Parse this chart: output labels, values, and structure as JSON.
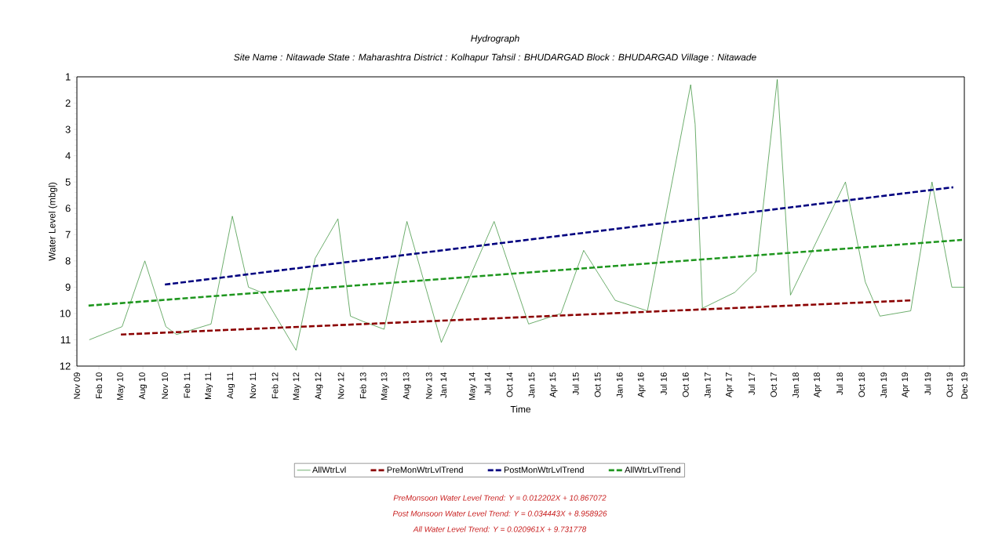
{
  "chart_data": {
    "type": "line",
    "title": "Hydrograph",
    "subtitle": "Site Name : Nitawade  State : Maharashtra District : Kolhapur  Tahsil : BHUDARGAD  Block : BHUDARGAD Village : Nitawade",
    "xlabel": "Time",
    "ylabel": "Water Level (mbgl)",
    "xlim": [
      "2009-11",
      "2019-12"
    ],
    "ylim": [
      12,
      1
    ],
    "yticks": [
      1,
      2,
      3,
      4,
      5,
      6,
      7,
      8,
      9,
      10,
      11,
      12
    ],
    "xticks": [
      {
        "value": "2009-11",
        "label": "Nov 09"
      },
      {
        "value": "2010-02",
        "label": "Feb 10"
      },
      {
        "value": "2010-05",
        "label": "May 10"
      },
      {
        "value": "2010-08",
        "label": "Aug 10"
      },
      {
        "value": "2010-11",
        "label": "Nov 10"
      },
      {
        "value": "2011-02",
        "label": "Feb 11"
      },
      {
        "value": "2011-05",
        "label": "May 11"
      },
      {
        "value": "2011-08",
        "label": "Aug 11"
      },
      {
        "value": "2011-11",
        "label": "Nov 11"
      },
      {
        "value": "2012-02",
        "label": "Feb 12"
      },
      {
        "value": "2012-05",
        "label": "May 12"
      },
      {
        "value": "2012-08",
        "label": "Aug 12"
      },
      {
        "value": "2012-11",
        "label": "Nov 12"
      },
      {
        "value": "2013-02",
        "label": "Feb 13"
      },
      {
        "value": "2013-05",
        "label": "May 13"
      },
      {
        "value": "2013-08",
        "label": "Aug 13"
      },
      {
        "value": "2013-11",
        "label": "Nov 13"
      },
      {
        "value": "2014-01",
        "label": "Jan 14"
      },
      {
        "value": "2014-05",
        "label": "May 14"
      },
      {
        "value": "2014-07",
        "label": "Jul 14"
      },
      {
        "value": "2014-10",
        "label": "Oct 14"
      },
      {
        "value": "2015-01",
        "label": "Jan 15"
      },
      {
        "value": "2015-04",
        "label": "Apr 15"
      },
      {
        "value": "2015-07",
        "label": "Jul 15"
      },
      {
        "value": "2015-10",
        "label": "Oct 15"
      },
      {
        "value": "2016-01",
        "label": "Jan 16"
      },
      {
        "value": "2016-04",
        "label": "Apr 16"
      },
      {
        "value": "2016-07",
        "label": "Jul 16"
      },
      {
        "value": "2016-10",
        "label": "Oct 16"
      },
      {
        "value": "2017-01",
        "label": "Jan 17"
      },
      {
        "value": "2017-04",
        "label": "Apr 17"
      },
      {
        "value": "2017-07",
        "label": "Jul 17"
      },
      {
        "value": "2017-10",
        "label": "Oct 17"
      },
      {
        "value": "2018-01",
        "label": "Jan 18"
      },
      {
        "value": "2018-04",
        "label": "Apr 18"
      },
      {
        "value": "2018-07",
        "label": "Jul 18"
      },
      {
        "value": "2018-10",
        "label": "Oct 18"
      },
      {
        "value": "2019-01",
        "label": "Jan 19"
      },
      {
        "value": "2019-04",
        "label": "Apr 19"
      },
      {
        "value": "2019-07",
        "label": "Jul 19"
      },
      {
        "value": "2019-10",
        "label": "Oct 19"
      },
      {
        "value": "2019-12",
        "label": "Dec 19"
      }
    ],
    "series": [
      {
        "name": "AllWtrLvl",
        "color": "#2e8b2e",
        "line_style": "solid",
        "x": [
          "2009-12-22",
          "2010-05-06",
          "2010-08-09",
          "2010-11-05",
          "2010-12-19",
          "2011-05-10",
          "2011-08-07",
          "2011-10-13",
          "2011-12-07",
          "2012-04-28",
          "2012-07-16",
          "2012-10-19",
          "2012-12-10",
          "2013-02-01",
          "2013-04-28",
          "2013-08-01",
          "2013-12-22",
          "2014-07-28",
          "2014-12-19",
          "2015-05-01",
          "2015-08-04",
          "2015-12-13",
          "2016-04-25",
          "2016-10-22",
          "2016-11-10",
          "2016-12-10",
          "2017-04-22",
          "2017-07-19",
          "2017-10-16",
          "2017-12-10",
          "2018-07-25",
          "2018-10-16",
          "2018-12-16",
          "2019-04-22",
          "2019-07-19",
          "2019-10-10",
          "2019-12-01"
        ],
        "values": [
          11.0,
          10.5,
          8.0,
          10.5,
          10.8,
          10.4,
          6.3,
          9.0,
          9.2,
          11.4,
          7.9,
          6.4,
          10.1,
          10.3,
          10.6,
          6.5,
          11.1,
          6.5,
          10.4,
          10.0,
          7.6,
          9.5,
          9.9,
          1.3,
          2.8,
          9.8,
          9.2,
          8.4,
          1.1,
          9.3,
          5.0,
          8.8,
          10.1,
          9.9,
          5.0,
          9.0,
          9.0
        ]
      },
      {
        "name": "PreMonWtrLvlTrend",
        "color": "#8b0000",
        "line_style": "dashed",
        "x": [
          "2010-05-01",
          "2019-04-28"
        ],
        "values": [
          10.8,
          9.5
        ]
      },
      {
        "name": "PostMonWtrLvlTrend",
        "color": "#00007f",
        "line_style": "dashed",
        "x": [
          "2010-11-01",
          "2019-10-16"
        ],
        "values": [
          8.9,
          5.2
        ]
      },
      {
        "name": "AllWtrLvlTrend",
        "color": "#1e961e",
        "line_style": "dashed",
        "x": [
          "2009-12-19",
          "2019-11-22"
        ],
        "values": [
          9.7,
          7.2
        ]
      }
    ],
    "legend": "bottom",
    "annotations": [
      "PreMonsoon Water Level Trend: Y = 0.012202X + 10.867072",
      "Post Monsoon Water Level Trend: Y = 0.034443X + 8.958926",
      "All Water Level Trend: Y = 0.020961X + 9.731778"
    ]
  }
}
